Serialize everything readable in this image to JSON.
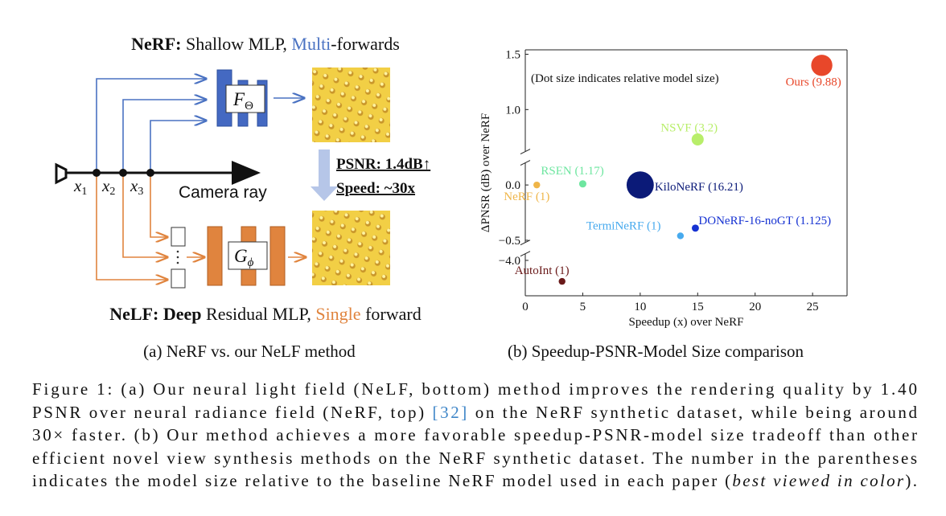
{
  "diagram": {
    "top_title": [
      "NeRF:",
      " Shallow MLP, ",
      "Multi",
      "-forwards"
    ],
    "f_label": "F",
    "f_sub": "Θ",
    "points": [
      "x",
      "1",
      "x",
      "2",
      "x",
      "3"
    ],
    "ray_label": "Camera ray",
    "psnr": "PSNR: 1.4dB↑",
    "speed": "Speed: ~30x",
    "g_label": "G",
    "g_sub": "ϕ",
    "bottom_title": [
      "NeLF:",
      " Deep",
      " Residual MLP, ",
      "Single",
      " forward"
    ],
    "subcaption": "(a) NeRF vs. our NeLF method"
  },
  "chart_data": {
    "type": "scatter",
    "title": "(b) Speedup-PSNR-Model Size comparison",
    "annotation": "(Dot size indicates relative model size)",
    "xlabel": "Speedup (x) over NeRF",
    "ylabel": "ΔPNSR (dB) over NeRF",
    "xlim": [
      0,
      28
    ],
    "xticks": [
      0,
      5,
      10,
      15,
      20,
      25
    ],
    "ylim": [
      -4.32,
      1.54
    ],
    "y_breaks": [
      [
        0.2,
        0.62
      ],
      [
        -3.94,
        -0.52
      ]
    ],
    "yticks": [
      1.5,
      {
        "value": 1,
        "label": "1.0"
      },
      {
        "value": 0,
        "label": "0.0"
      },
      {
        "value": -0.5,
        "label": "−0.5"
      },
      {
        "value": -4,
        "label": "−4.0"
      }
    ],
    "series": [
      {
        "name": "Ours (9.88)",
        "color": "#e8472a",
        "x": [
          25.8
        ],
        "values": [
          1.4
        ],
        "sizes": [
          9.88
        ]
      },
      {
        "name": "NSVF (3.2)",
        "color": "#b8ee6a",
        "x": [
          15
        ],
        "values": [
          0.73
        ],
        "sizes": [
          3.2
        ]
      },
      {
        "name": "RSEN (1.17)",
        "color": "#6ee6a0",
        "x": [
          5
        ],
        "values": [
          0.01
        ],
        "sizes": [
          1.17
        ]
      },
      {
        "name": "NeRF (1)",
        "color": "#efb548",
        "x": [
          1
        ],
        "values": [
          0
        ],
        "sizes": [
          1
        ]
      },
      {
        "name": "KiloNeRF (16.21)",
        "color": "#0b1a78",
        "x": [
          10
        ],
        "values": [
          0
        ],
        "sizes": [
          16.21
        ]
      },
      {
        "name": "TermiNeRF (1)",
        "color": "#47aaee",
        "x": [
          13.5
        ],
        "values": [
          -0.46
        ],
        "sizes": [
          1
        ]
      },
      {
        "name": "DONeRF-16-noGT (1.125)",
        "color": "#1632d2",
        "x": [
          14.8
        ],
        "values": [
          -0.39
        ],
        "sizes": [
          1.125
        ]
      },
      {
        "name": "AutoInt (1)",
        "color": "#6a1a1a",
        "x": [
          3.2
        ],
        "values": [
          -4.19
        ],
        "sizes": [
          1
        ]
      }
    ]
  },
  "caption": {
    "lines": [
      [
        "Figure 1: (a) Our neural light field (NeLF, bottom) method improves the rendering quality by 1.40"
      ],
      [
        "PSNR over neural radiance field (NeRF, top) ",
        "[32]",
        " on the NeRF synthetic dataset, while being around"
      ],
      [
        "30× faster. (b) Our method achieves a more favorable speedup-PSNR-model size tradeoff than other"
      ],
      [
        "efficient novel view synthesis methods on the NeRF synthetic dataset. The number in the parentheses"
      ],
      [
        "indicates the model size relative to the baseline NeRF model used in each paper (",
        "best viewed in color",
        ")."
      ]
    ]
  }
}
